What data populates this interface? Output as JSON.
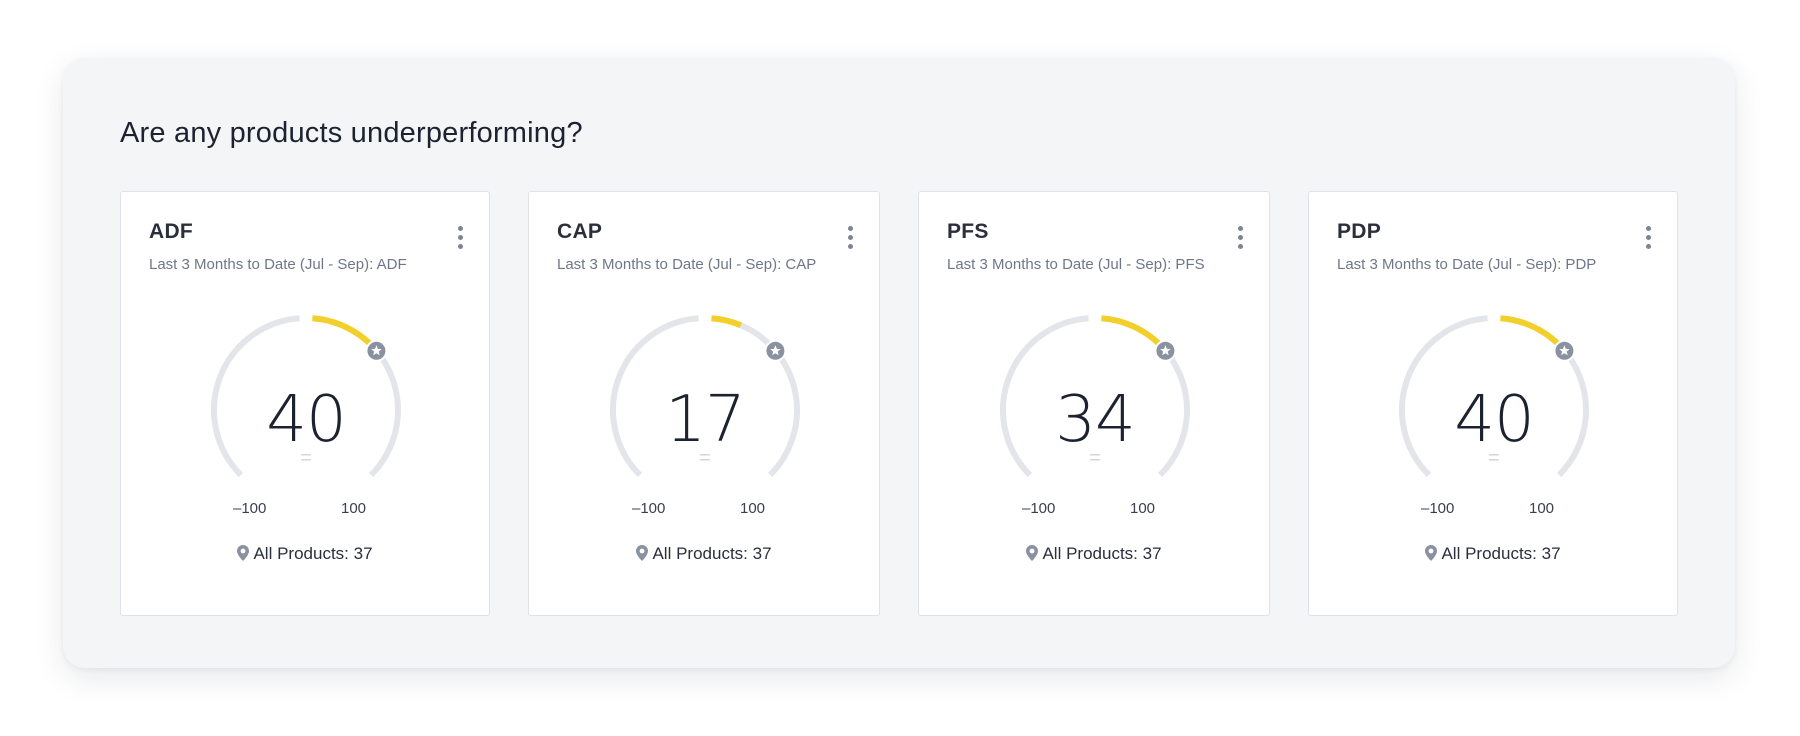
{
  "panel": {
    "title": "Are any products underperforming?"
  },
  "colors": {
    "panel_bg": "#f4f5f7",
    "gauge_track": "#e3e5ea",
    "gauge_fill": "#f2cf2a",
    "badge": "#8a91a0"
  },
  "cards": [
    {
      "title": "ADF",
      "subtitle": "Last 3 Months to Date (Jul - Sep): ADF",
      "value": "40",
      "trend": "=",
      "min_label": "–100",
      "max_label": "100",
      "footer": "All Products: 37",
      "value_num": 40,
      "benchmark_num": 37
    },
    {
      "title": "CAP",
      "subtitle": "Last 3 Months to Date (Jul - Sep): CAP",
      "value": "17",
      "trend": "=",
      "min_label": "–100",
      "max_label": "100",
      "footer": "All Products: 37",
      "value_num": 17,
      "benchmark_num": 37
    },
    {
      "title": "PFS",
      "subtitle": "Last 3 Months to Date (Jul - Sep): PFS",
      "value": "34",
      "trend": "=",
      "min_label": "–100",
      "max_label": "100",
      "footer": "All Products: 37",
      "value_num": 34,
      "benchmark_num": 37
    },
    {
      "title": "PDP",
      "subtitle": "Last 3 Months to Date (Jul - Sep): PDP",
      "value": "40",
      "trend": "=",
      "min_label": "–100",
      "max_label": "100",
      "footer": "All Products: 37",
      "value_num": 40,
      "benchmark_num": 37
    }
  ]
}
